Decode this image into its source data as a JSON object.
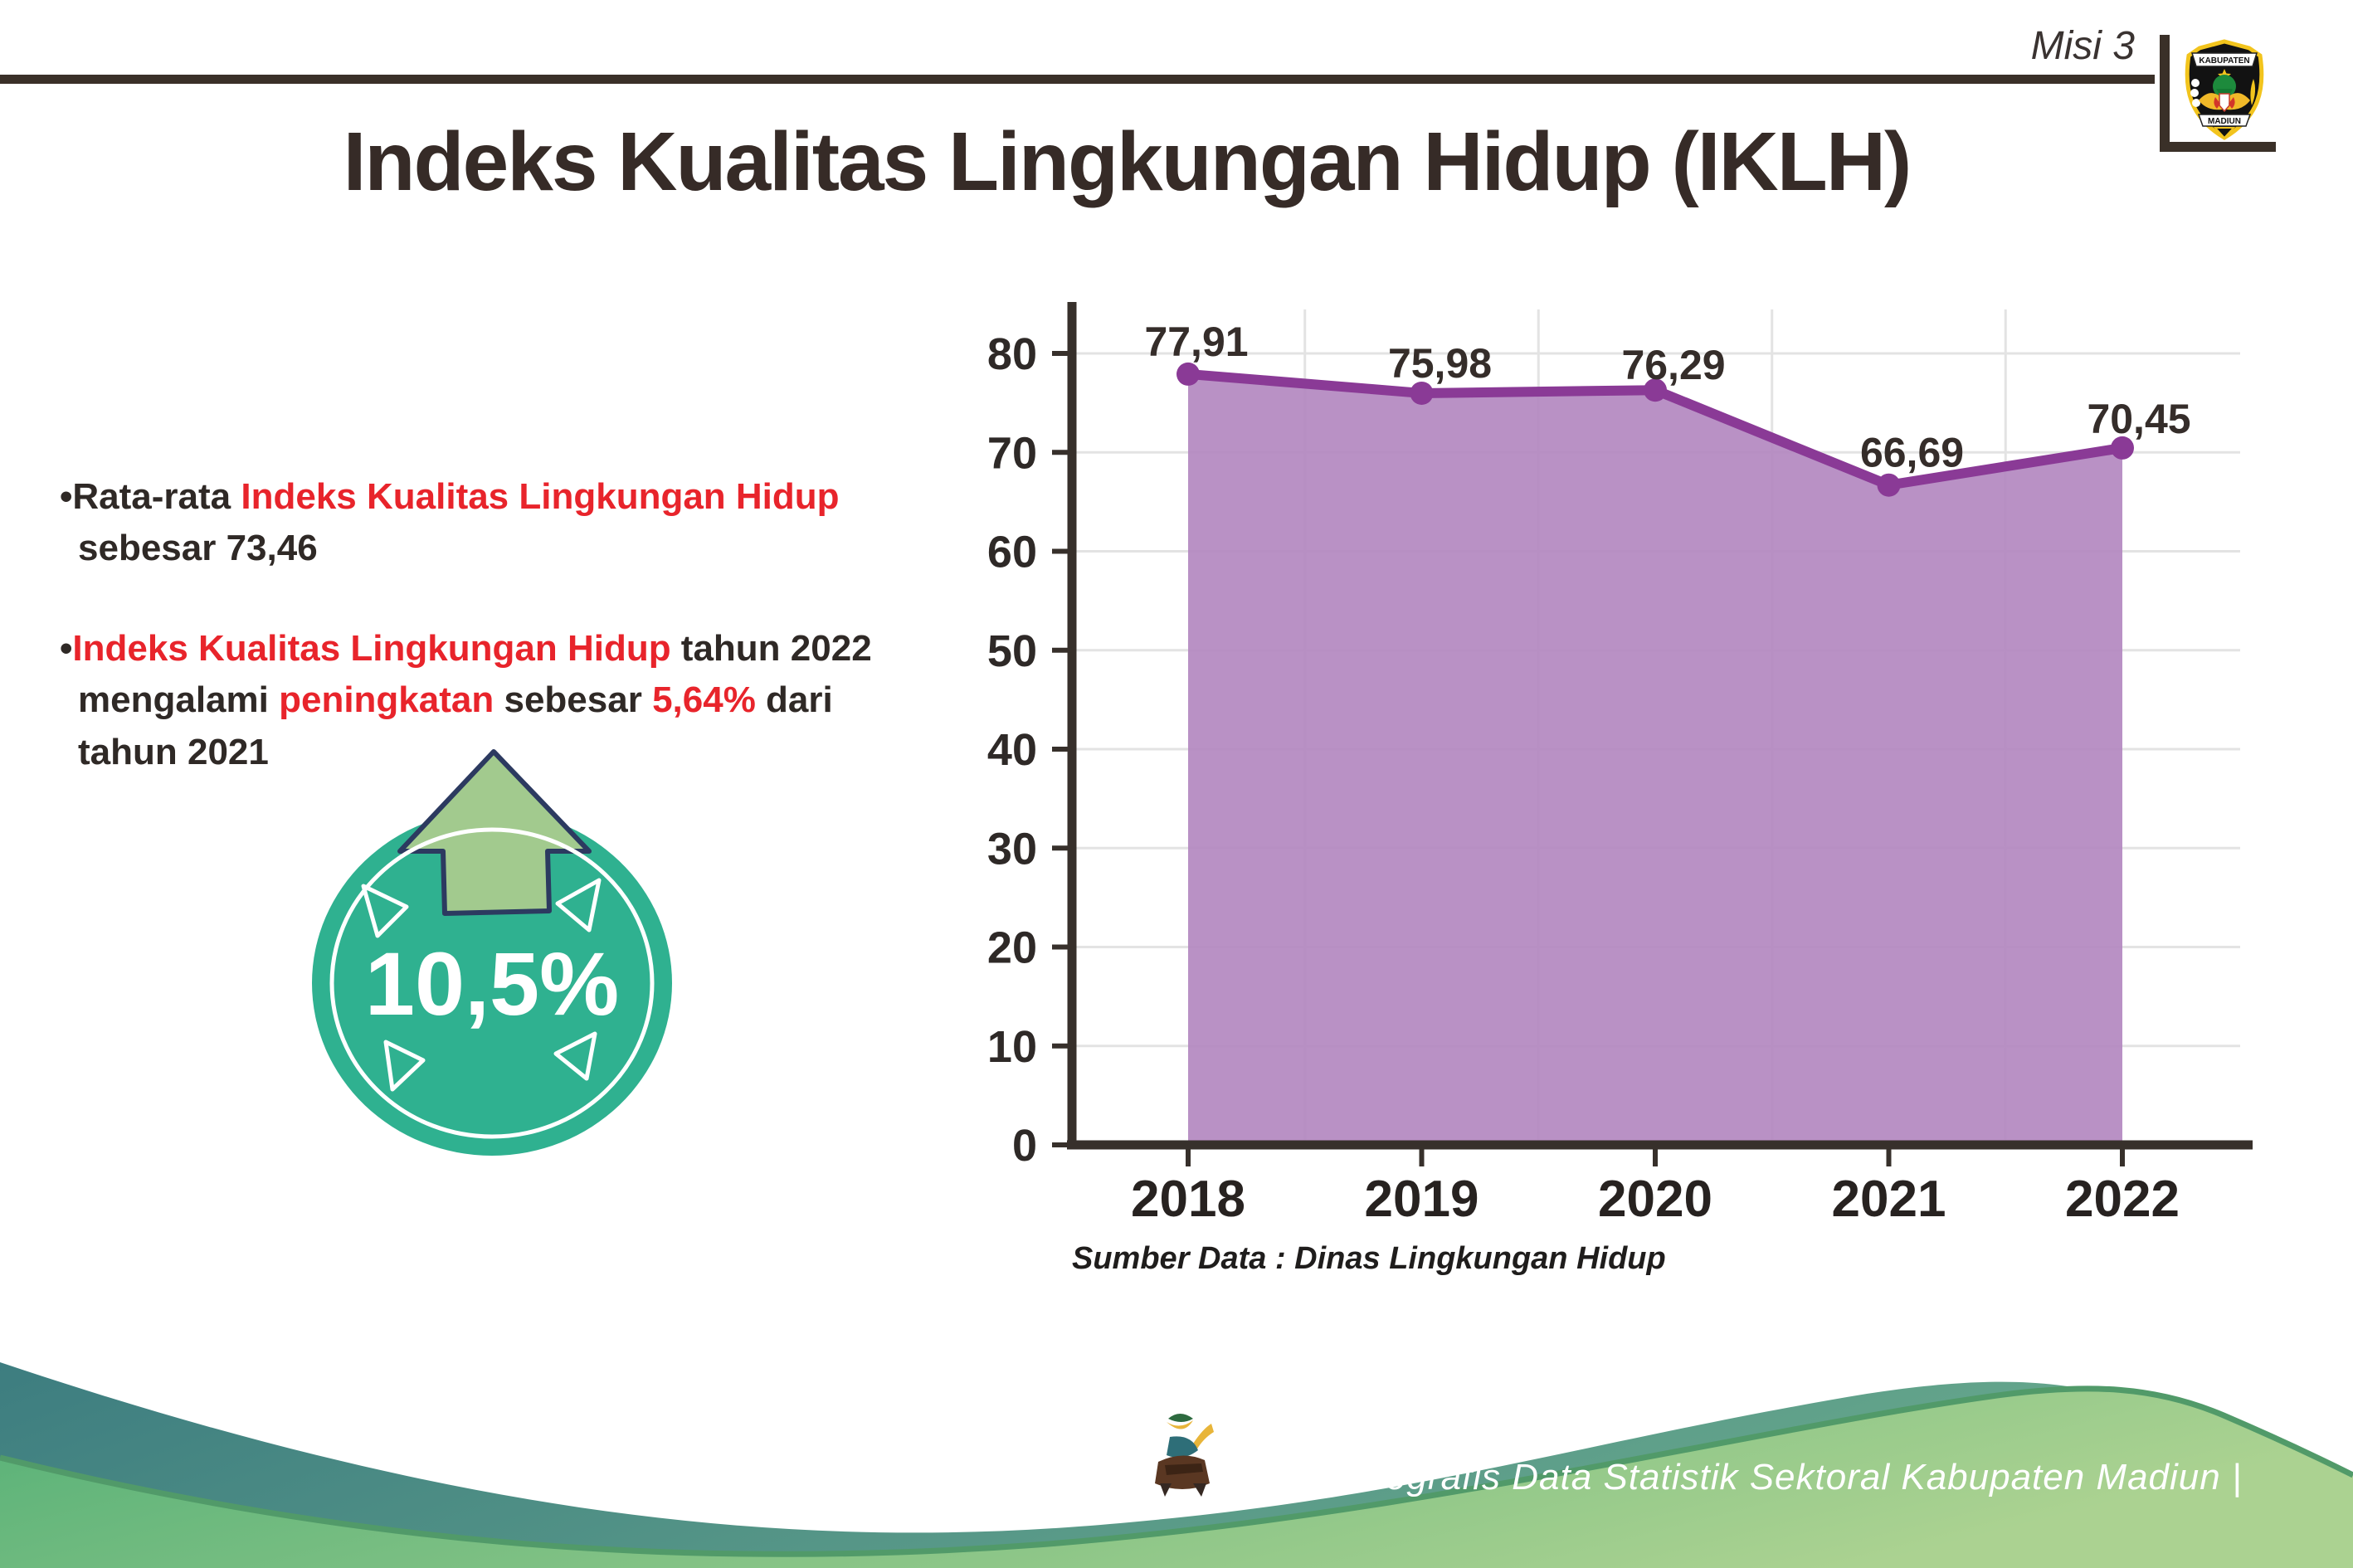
{
  "header": {
    "misi_label": "Misi 3",
    "logo_text_top": "KABUPATEN",
    "logo_text_bottom": "MADIUN"
  },
  "title": "Indeks Kualitas Lingkungan Hidup (IKLH)",
  "bullets": {
    "b1": {
      "l1_dark": "Rata-rata ",
      "l1_red": "Indeks Kualitas Lingkungan Hidup",
      "l2_dark": "sebesar 73,46"
    },
    "b2": {
      "l1_red": "Indeks Kualitas Lingkungan Hidup",
      "l1_dark": " tahun 2022",
      "l2_dark1": "mengalami ",
      "l2_red1": "peningkatan",
      "l2_dark2": " sebesar ",
      "l2_red2": "5,64%",
      "l2_dark3": " dari",
      "l3_dark": "tahun 2021"
    }
  },
  "badge": {
    "value": "10,5%",
    "circle_color": "#2fb190",
    "arrow_color": "#a2ca8e",
    "arrow_outline": "#2c3a60"
  },
  "chart_data": {
    "type": "area",
    "categories": [
      "2018",
      "2019",
      "2020",
      "2021",
      "2022"
    ],
    "values": [
      77.91,
      75.98,
      76.29,
      66.69,
      70.45
    ],
    "point_labels": [
      "77,91",
      "75,98",
      "76,29",
      "66,69",
      "70,45"
    ],
    "ylim": [
      0,
      80
    ],
    "ytick_step": 10,
    "grid": true,
    "legend": "none",
    "line_color": "#8a3a96",
    "fill_color": "#b388c0",
    "axis_color": "#37302b",
    "grid_color": "#e3e3e3",
    "label_color": "#352d2a",
    "source": "Sumber Data : Dinas Lingkungan Hidup"
  },
  "footer": {
    "caption": "Media Infografis Data Statistik Sektoral Kabupaten Madiun |",
    "teal_band_color": "#3d7d80",
    "green_band_color": "#55b077",
    "green_edge_color": "#519a69"
  }
}
